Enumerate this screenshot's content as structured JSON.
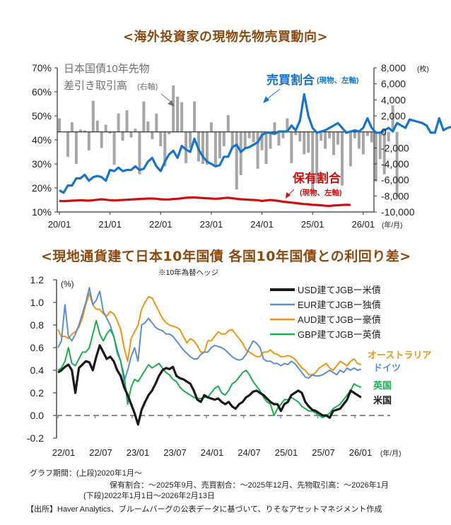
{
  "titles": {
    "top": "<海外投資家の現物先物売買動向>",
    "bottom": "<現地通貨建て日本10年国債 各国10年国債との利回り差>"
  },
  "notes": {
    "hedge": "※10年為替ヘッジ",
    "period_label": "グラフ期間：(上段)2020年1月～",
    "period_top_detail": "保有割合：～2025年9月、売買割合：～2025年12月、先物取引高：～2026年1月",
    "period_bottom": "(下段)2022年1月1日～2026年2月13日",
    "source": "【出所】Haver Analytics、ブルームバーグの公表データに基づいて、りそなアセットマネジメント作成"
  },
  "chart_data": [
    {
      "type": "bar+line",
      "title": "<海外投資家の現物先物売買動向>",
      "xlabel": "(年/月)",
      "ylabel_left": "%",
      "ylabel_right": "(枚)",
      "x_ticks": [
        "20/01",
        "21/01",
        "22/01",
        "23/01",
        "24/01",
        "25/01",
        "26/01"
      ],
      "ylim_left": [
        10,
        70
      ],
      "yticks_left": [
        "70%",
        "60%",
        "50%",
        "40%",
        "30%",
        "20%",
        "10%"
      ],
      "ylim_right": [
        -10000,
        8000
      ],
      "yticks_right": [
        "8,000",
        "6,000",
        "4,000",
        "2,000",
        "0",
        "-2,000",
        "-4,000",
        "-6,000",
        "-8,000",
        "-10,000"
      ],
      "annotations": {
        "bars": {
          "line1": "日本国債10年先物",
          "line2": "差引き取引高",
          "axis": "(右軸)"
        },
        "trade": {
          "main": "売買割合",
          "sub": "(現物、左軸)"
        },
        "hold": {
          "main": "保有割合",
          "sub": "(現物、左軸)"
        }
      },
      "colors": {
        "bars": "#a6a6a6",
        "trade": "#1874c8",
        "hold": "#cc1010",
        "axis": "#333333"
      },
      "series": [
        {
          "name": "日本国債10年先物 差引き取引高(右軸)",
          "kind": "bar",
          "start": "2020-01",
          "values": [
            1700,
            0,
            -3100,
            1200,
            -4000,
            300,
            200,
            -2300,
            3900,
            1400,
            -2000,
            900,
            -200,
            -4100,
            2300,
            -1100,
            2700,
            -700,
            400,
            -5300,
            3800,
            1300,
            -900,
            2300,
            -1800,
            -4300,
            -300,
            5800,
            4400,
            3700,
            -3900,
            -2000,
            3800,
            -3700,
            -4000,
            -4100,
            1200,
            -4200,
            -3300,
            -1800,
            2100,
            -2100,
            -7200,
            -5400,
            -2000,
            -800,
            -1300,
            -4600,
            -2300,
            -4000,
            -2100,
            1200,
            -1700,
            -800,
            1700,
            -3900,
            -400,
            -1200,
            -2800,
            -2600,
            -7700,
            -6400,
            -1100,
            -2100,
            -800,
            -2900,
            -1600,
            -6700,
            -200,
            -4300,
            -800,
            -2100,
            -2800,
            -500,
            -1300,
            -6200,
            -3400,
            -5300,
            -1200,
            3300,
            -8100
          ]
        },
        {
          "name": "売買割合(現物、左軸)",
          "kind": "line",
          "start": "2020-01",
          "values": [
            19,
            18,
            21,
            21,
            24,
            24,
            25.5,
            23,
            24.5,
            25,
            24.5,
            23,
            27.5,
            27,
            28.5,
            27,
            27.5,
            27.5,
            29,
            27.5,
            28,
            31,
            32.5,
            29,
            27,
            31,
            34,
            35.5,
            32.5,
            37.5,
            36,
            35,
            40.5,
            36,
            33,
            31,
            30,
            29,
            29.5,
            33,
            33,
            37,
            38,
            35,
            36.5,
            37,
            38,
            39,
            42,
            43,
            43,
            42.5,
            43.5,
            43.5,
            43.5,
            46,
            44,
            48,
            59,
            50,
            45,
            43,
            43.5,
            44,
            45,
            46,
            47,
            45,
            43,
            43.5,
            44,
            43.5,
            45,
            49,
            45,
            43,
            43,
            44,
            45,
            43.5,
            47,
            46,
            45,
            48.5,
            48,
            47.5,
            47,
            46,
            43,
            43,
            49,
            44,
            45,
            45.5
          ]
        },
        {
          "name": "保有割合(現物、左軸)",
          "kind": "line",
          "start": "2020-01",
          "values": [
            14.6,
            14.5,
            14.6,
            14.7,
            14.8,
            14.9,
            14.8,
            14.7,
            14.9,
            15.1,
            15.3,
            15.1,
            14.9,
            14.8,
            14.9,
            15.0,
            15.1,
            15.2,
            15.3,
            15.4,
            15.5,
            15.6,
            15.6,
            15.5,
            15.3,
            15.2,
            15.2,
            15.4,
            15.5,
            15.7,
            15.9,
            16.0,
            16.1,
            15.9,
            15.8,
            15.7,
            15.6,
            15.5,
            15.6,
            15.8,
            15.9,
            15.7,
            15.5,
            15.3,
            15.2,
            15.1,
            15.0,
            14.9,
            14.6,
            14.8,
            15.0,
            14.8,
            14.6,
            14.3,
            14.1,
            13.9,
            13.7,
            13.5,
            13.3,
            13.2,
            13.0,
            12.9,
            12.8,
            12.6,
            12.5,
            12.7,
            12.8,
            12.9,
            13.0,
            12.9
          ]
        }
      ]
    },
    {
      "type": "line",
      "title": "<現地通貨建て日本10年国債 各国10年国債との利回り差>",
      "ylabel": "(%)",
      "xlabel": "(年/月)",
      "x_ticks": [
        "22/01",
        "22/07",
        "23/01",
        "23/07",
        "24/01",
        "24/07",
        "25/01",
        "25/07",
        "26/01"
      ],
      "ylim": [
        -0.2,
        1.2
      ],
      "yticks": [
        "1.2",
        "1.0",
        "0.8",
        "0.6",
        "0.4",
        "0.2",
        "0.0",
        "-0.2"
      ],
      "legend": [
        "USD建てJGBー米債",
        "EUR建てJGBー独債",
        "AUD建てJGBー豪債",
        "GBP建てJGBー英債"
      ],
      "legend_position": "top-right",
      "end_labels": [
        "オーストラリア",
        "ドイツ",
        "英国",
        "米国"
      ],
      "zero_line": "dashed",
      "series": [
        {
          "name": "USD建てJGBー米債",
          "color": "#1a1a1a",
          "start": "2022-01",
          "step": "half-month",
          "values": [
            0.38,
            0.4,
            0.43,
            0.45,
            0.4,
            0.2,
            0.42,
            0.45,
            0.48,
            0.47,
            0.4,
            0.52,
            0.62,
            0.56,
            0.5,
            0.52,
            0.48,
            0.4,
            0.35,
            0.25,
            0.18,
            0.1,
            0.02,
            -0.08,
            0.05,
            0.12,
            0.18,
            0.22,
            0.28,
            0.35,
            0.4,
            0.42,
            0.41,
            0.43,
            0.35,
            0.33,
            0.32,
            0.3,
            0.28,
            0.22,
            0.14,
            0.12,
            0.18,
            0.16,
            0.15,
            0.14,
            0.15,
            0.12,
            0.1,
            0.12,
            0.08,
            0.06,
            0.1,
            0.12,
            0.16,
            0.18,
            0.21,
            0.22,
            0.2,
            0.18,
            0.15,
            0.12,
            0.1,
            0.1,
            0.04,
            0.1,
            0.12,
            0.18,
            0.2,
            0.22,
            0.2,
            0.12,
            0.08,
            0.05,
            0.04,
            0.02,
            0.0,
            0.0,
            -0.02,
            0.04,
            0.05,
            0.06,
            0.1,
            0.14,
            0.22,
            0.2,
            0.18,
            0.16
          ]
        },
        {
          "name": "EUR建てJGBー独債",
          "color": "#5b8fcf",
          "start": "2022-01",
          "step": "half-month",
          "values": [
            0.6,
            0.66,
            0.98,
            0.7,
            0.66,
            0.72,
            0.8,
            0.9,
            1.0,
            1.13,
            0.98,
            1.02,
            1.1,
            0.92,
            0.86,
            0.8,
            0.7,
            0.55,
            0.48,
            0.3,
            0.4,
            0.52,
            0.6,
            0.48,
            0.8,
            0.82,
            0.86,
            0.82,
            0.78,
            0.76,
            0.75,
            0.72,
            0.72,
            0.7,
            0.66,
            0.62,
            0.58,
            0.55,
            0.52,
            0.5,
            0.5,
            0.54,
            0.56,
            0.56,
            0.6,
            0.62,
            0.61,
            0.6,
            0.58,
            0.55,
            0.52,
            0.5,
            0.49,
            0.5,
            0.54,
            0.6,
            0.66,
            0.64,
            0.6,
            0.5,
            0.48,
            0.48,
            0.46,
            0.46,
            0.44,
            0.46,
            0.45,
            0.48,
            0.46,
            0.42,
            0.38,
            0.34,
            0.33,
            0.36,
            0.35,
            0.35,
            0.36,
            0.38,
            0.4,
            0.38,
            0.36,
            0.4,
            0.38,
            0.42,
            0.4,
            0.42,
            0.4,
            0.41
          ]
        },
        {
          "name": "AUD建てJGBー豪債",
          "color": "#f0950f",
          "start": "2022-01",
          "step": "half-month",
          "values": [
            0.76,
            0.7,
            0.7,
            0.68,
            0.72,
            0.74,
            0.78,
            0.86,
            0.98,
            1.08,
            0.98,
            0.94,
            0.94,
            0.9,
            0.88,
            0.92,
            0.9,
            0.84,
            0.76,
            0.6,
            0.48,
            0.68,
            0.74,
            0.8,
            0.94,
            1.0,
            1.05,
            1.04,
            0.98,
            0.92,
            0.86,
            0.82,
            0.8,
            0.79,
            0.78,
            0.76,
            0.7,
            0.64,
            0.68,
            0.66,
            0.62,
            0.56,
            0.56,
            0.66,
            0.66,
            0.7,
            0.74,
            0.72,
            0.72,
            0.75,
            0.76,
            0.72,
            0.68,
            0.64,
            0.58,
            0.56,
            0.54,
            0.52,
            0.52,
            0.56,
            0.56,
            0.58,
            0.55,
            0.54,
            0.52,
            0.52,
            0.53,
            0.52,
            0.5,
            0.46,
            0.42,
            0.4,
            0.36,
            0.36,
            0.38,
            0.42,
            0.44,
            0.46,
            0.42,
            0.4,
            0.44,
            0.48,
            0.46,
            0.44,
            0.48,
            0.5,
            0.46,
            0.45
          ]
        },
        {
          "name": "GBP建てJGBー英債",
          "color": "#19ad4c",
          "start": "2022-01",
          "step": "half-month",
          "values": [
            0.4,
            0.42,
            0.48,
            0.6,
            0.46,
            0.44,
            0.5,
            0.56,
            0.56,
            0.6,
            0.72,
            0.84,
            0.72,
            0.66,
            0.72,
            0.76,
            0.7,
            0.58,
            0.48,
            0.35,
            0.1,
            0.25,
            0.32,
            0.3,
            0.35,
            0.4,
            0.45,
            0.42,
            0.44,
            0.46,
            0.42,
            0.38,
            0.36,
            0.32,
            0.3,
            0.25,
            0.22,
            0.2,
            0.18,
            0.16,
            0.15,
            0.15,
            0.16,
            0.16,
            0.2,
            0.24,
            0.26,
            0.2,
            0.18,
            0.22,
            0.28,
            0.3,
            0.34,
            0.38,
            0.4,
            0.36,
            0.3,
            0.26,
            0.22,
            0.16,
            0.12,
            0.1,
            0.0,
            0.06,
            0.1,
            0.14,
            0.14,
            0.16,
            0.14,
            0.12,
            0.08,
            0.06,
            0.04,
            0.04,
            0.02,
            0.0,
            -0.02,
            0.0,
            0.02,
            0.06,
            0.08,
            0.1,
            0.14,
            0.18,
            0.22,
            0.28,
            0.26,
            0.25
          ]
        }
      ]
    }
  ]
}
